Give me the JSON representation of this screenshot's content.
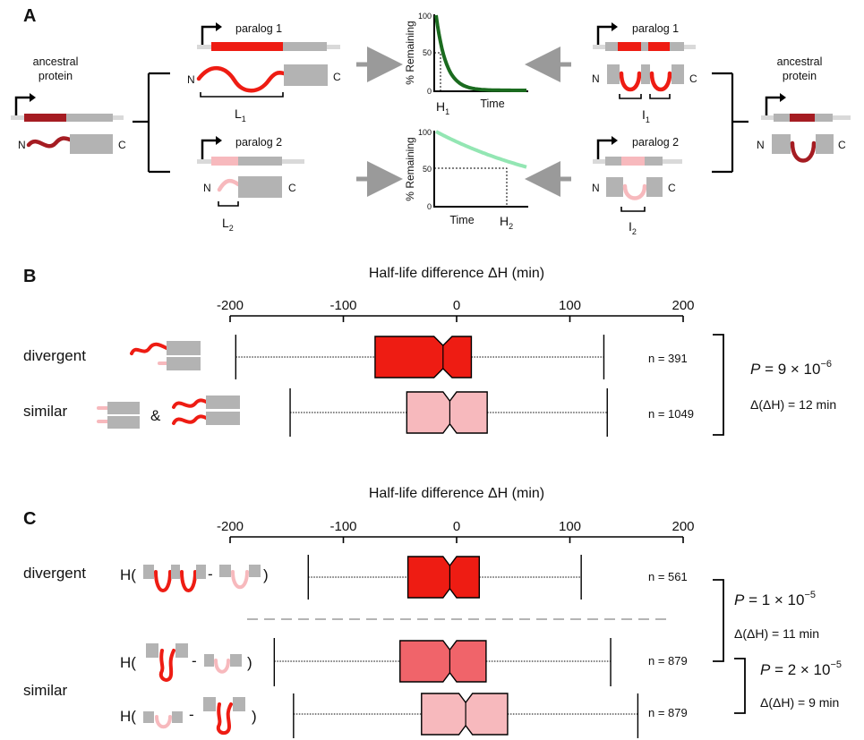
{
  "colors": {
    "red": "#ee1c13",
    "dark_red": "#a51c22",
    "pink": "#f7b9bd",
    "mid_red": "#f0646a",
    "gray": "#b3b3b3",
    "light_gray": "#d9d9d9",
    "dark_green": "#1b6b1f",
    "light_green": "#93e6b3",
    "arrow_gray": "#9a9a9a",
    "dashed": "#aaaaaa"
  },
  "panelA": {
    "label": "A",
    "left_ancestral": "ancestral\nprotein",
    "right_ancestral": "ancestral\nprotein",
    "n": "N",
    "c": "C",
    "paralog1": "paralog 1",
    "paralog2": "paralog 2",
    "L1_main": "L",
    "L1_sub": "1",
    "L2_main": "L",
    "L2_sub": "2",
    "I1_main": "I",
    "I1_sub": "1",
    "I2_main": "I",
    "I2_sub": "2",
    "ylabel": "% Remaining",
    "time": "Time",
    "H1_main": "H",
    "H1_sub": "1",
    "H2_main": "H",
    "H2_sub": "2",
    "tick_100": "100",
    "tick_50": "50",
    "tick_0": "0"
  },
  "panelB": {
    "label": "B",
    "axis_title": "Half-life difference ΔH (min)",
    "rows": [
      {
        "label": "divergent",
        "n": "n = 391"
      },
      {
        "label": "similar",
        "n": "n = 1049"
      }
    ],
    "amp": "&",
    "p_main": "P",
    "p_value": " = 9 × 10",
    "p_exp": "−6",
    "delta": "Δ(ΔH) = 12 min"
  },
  "panelC": {
    "label": "C",
    "axis_title": "Half-life difference ΔH (min)",
    "row_divergent": "divergent",
    "row_similar": "similar",
    "h_open": "H(",
    "minus": "-",
    "h_close": ")",
    "n_values": [
      "n = 561",
      "n = 879",
      "n = 879"
    ],
    "p1_main": "P",
    "p1_value": " = 1 × 10",
    "p1_exp": "−5",
    "delta1": "Δ(ΔH) = 11 min",
    "p2_main": "P",
    "p2_value": " = 2 × 10",
    "p2_exp": "−5",
    "delta2": "Δ(ΔH) = 9 min"
  },
  "chart_data": [
    {
      "type": "boxplot",
      "panel": "B",
      "xlabel": "Half-life difference ΔH (min)",
      "xlim": [
        -200,
        200
      ],
      "xticks": [
        -200,
        -100,
        0,
        100,
        200
      ],
      "series": [
        {
          "name": "divergent",
          "n": 391,
          "whisker_low": -195,
          "q1": -72,
          "median": -12,
          "q3": 13,
          "whisker_high": 130,
          "notch": [
            -20,
            -4
          ],
          "color": "#ee1c13"
        },
        {
          "name": "similar",
          "n": 1049,
          "whisker_low": -147,
          "q1": -44,
          "median": -6,
          "q3": 27,
          "whisker_high": 133,
          "notch": [
            -12,
            0
          ],
          "color": "#f7b9bd"
        }
      ]
    },
    {
      "type": "boxplot",
      "panel": "C",
      "xlabel": "Half-life difference ΔH (min)",
      "xlim": [
        -200,
        200
      ],
      "xticks": [
        -200,
        -100,
        0,
        100,
        200
      ],
      "series": [
        {
          "name": "divergent",
          "n": 561,
          "whisker_low": -131,
          "q1": -43,
          "median": -6,
          "q3": 20,
          "whisker_high": 110,
          "notch": [
            -12,
            0
          ],
          "color": "#ee1c13"
        },
        {
          "name": "similar (1)",
          "n": 879,
          "whisker_low": -161,
          "q1": -50,
          "median": -6,
          "q3": 26,
          "whisker_high": 136,
          "notch": [
            -12,
            0
          ],
          "color": "#f0646a"
        },
        {
          "name": "similar (2)",
          "n": 879,
          "whisker_low": -144,
          "q1": -31,
          "median": 8,
          "q3": 45,
          "whisker_high": 160,
          "notch": [
            2,
            14
          ],
          "color": "#f7b9bd"
        }
      ]
    }
  ]
}
